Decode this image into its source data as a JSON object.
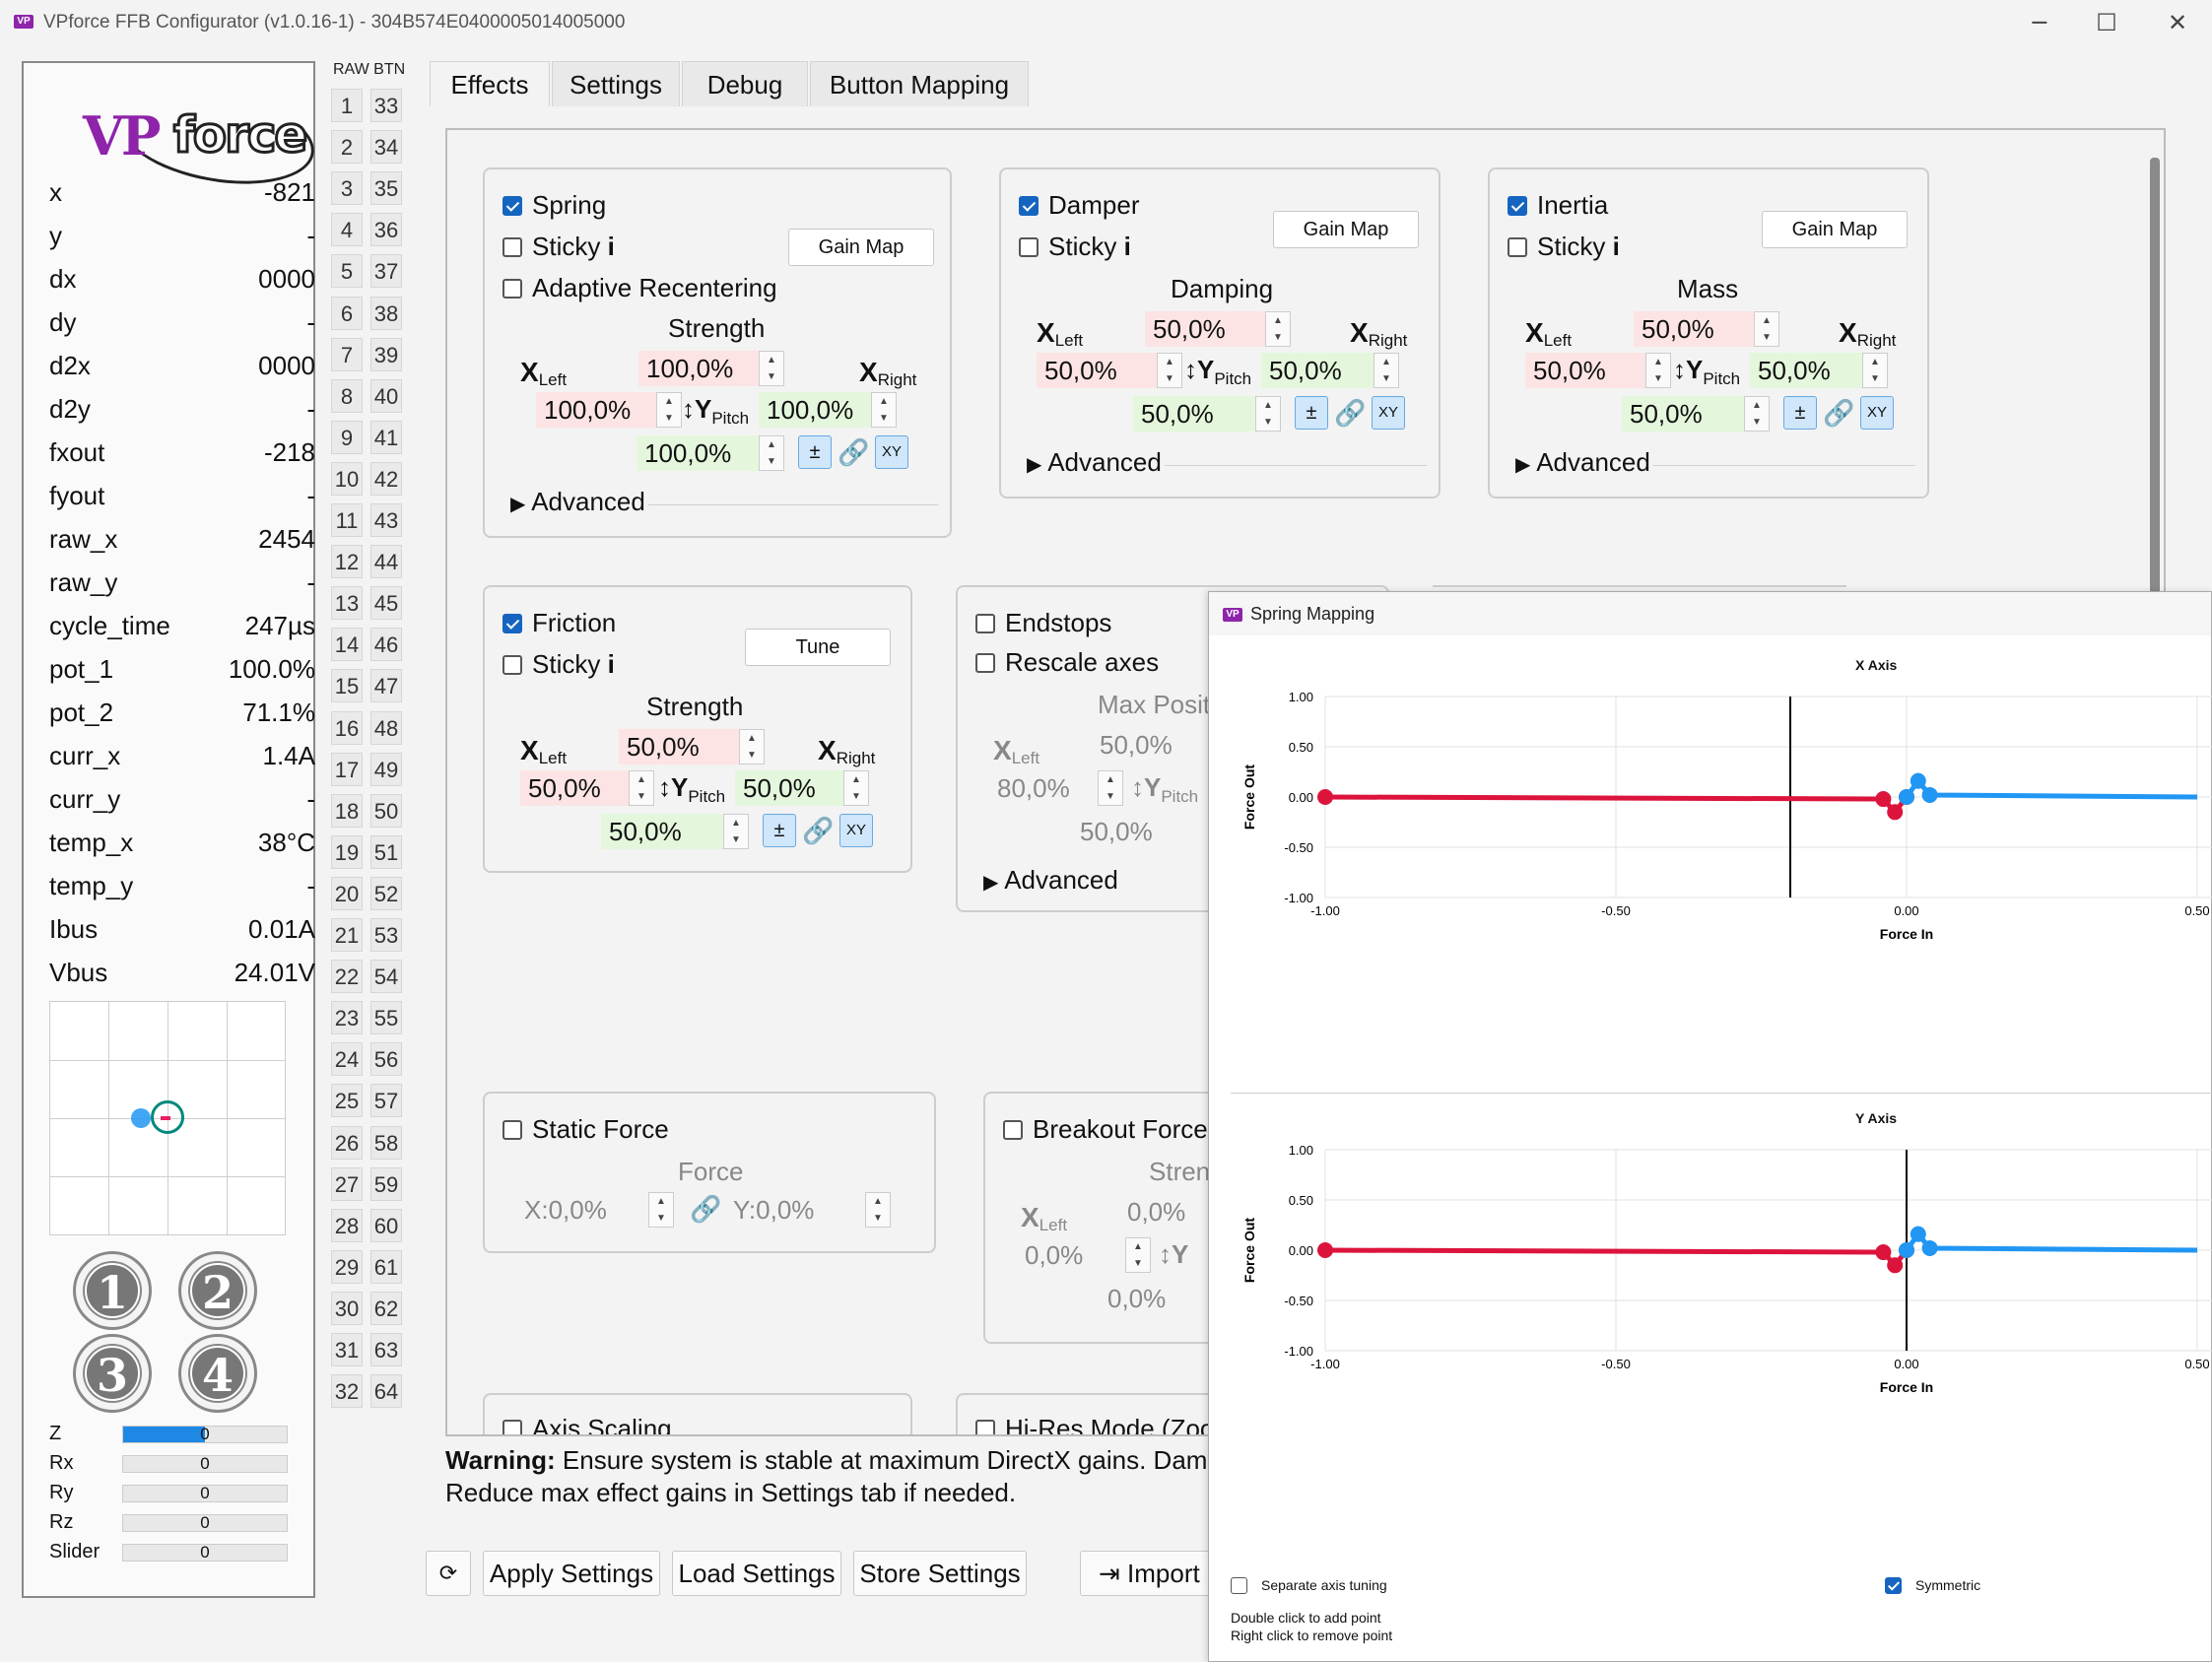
{
  "window": {
    "title": "VPforce FFB Configurator (v1.0.16-1) - 304B574E0400005014005000",
    "icon_text": "VP",
    "controls": {
      "minimize": "─",
      "maximize": "☐",
      "close": "✕"
    }
  },
  "logo": {
    "vp": "VP",
    "force": "force"
  },
  "telemetry": [
    {
      "key": "x",
      "value": "-821"
    },
    {
      "key": "y",
      "value": "-"
    },
    {
      "key": "dx",
      "value": "0000"
    },
    {
      "key": "dy",
      "value": "-"
    },
    {
      "key": "d2x",
      "value": "0000"
    },
    {
      "key": "d2y",
      "value": "-"
    },
    {
      "key": "fxout",
      "value": "-218"
    },
    {
      "key": "fyout",
      "value": "-"
    },
    {
      "key": "raw_x",
      "value": "2454"
    },
    {
      "key": "raw_y",
      "value": "-"
    },
    {
      "key": "cycle_time",
      "value": "247µs"
    },
    {
      "key": "pot_1",
      "value": "100.0%"
    },
    {
      "key": "pot_2",
      "value": "71.1%"
    },
    {
      "key": "curr_x",
      "value": "1.4A"
    },
    {
      "key": "curr_y",
      "value": "-"
    },
    {
      "key": "temp_x",
      "value": "38°C"
    },
    {
      "key": "temp_y",
      "value": "-"
    },
    {
      "key": "Ibus",
      "value": "0.01A"
    },
    {
      "key": "Vbus",
      "value": "24.01V"
    }
  ],
  "buttons_icons": [
    "1",
    "2",
    "3",
    "4"
  ],
  "axes": [
    {
      "key": "Z",
      "value": "0",
      "fill": 0.5
    },
    {
      "key": "Rx",
      "value": "0",
      "fill": 0
    },
    {
      "key": "Ry",
      "value": "0",
      "fill": 0
    },
    {
      "key": "Rz",
      "value": "0",
      "fill": 0
    },
    {
      "key": "Slider",
      "value": "0",
      "fill": 0
    }
  ],
  "rawbtn": {
    "header": "RAW BTN",
    "raw": [
      "1",
      "2",
      "3",
      "4",
      "5",
      "6",
      "7",
      "8",
      "9",
      "10",
      "11",
      "12",
      "13",
      "14",
      "15",
      "16",
      "17",
      "18",
      "19",
      "20",
      "21",
      "22",
      "23",
      "24",
      "25",
      "26",
      "27",
      "28",
      "29",
      "30",
      "31",
      "32"
    ],
    "btn": [
      "33",
      "34",
      "35",
      "36",
      "37",
      "38",
      "39",
      "40",
      "41",
      "42",
      "43",
      "44",
      "45",
      "46",
      "47",
      "48",
      "49",
      "50",
      "51",
      "52",
      "53",
      "54",
      "55",
      "56",
      "57",
      "58",
      "59",
      "60",
      "61",
      "62",
      "63",
      "64"
    ]
  },
  "tabs": [
    "Effects",
    "Settings",
    "Debug",
    "Button Mapping"
  ],
  "common": {
    "sticky": "Sticky",
    "info": "i",
    "gain_map": "Gain Map",
    "advanced": "Advanced",
    "x": "X",
    "left": "Left",
    "right": "Right",
    "y": "Y",
    "pitch": "Pitch",
    "pm": "±",
    "xy": "XY",
    "arrow_updown": "↕",
    "link": "🔗",
    "tri": "▶"
  },
  "spring": {
    "enabled_label": "Spring",
    "adaptive": "Adaptive Recentering",
    "section": "Strength",
    "top": "100,0%",
    "left": "100,0%",
    "right": "100,0%",
    "bottom": "100,0%"
  },
  "damper": {
    "enabled_label": "Damper",
    "section": "Damping",
    "top": "50,0%",
    "left": "50,0%",
    "right": "50,0%",
    "bottom": "50,0%"
  },
  "inertia": {
    "enabled_label": "Inertia",
    "section": "Mass",
    "top": "50,0%",
    "left": "50,0%",
    "right": "50,0%",
    "bottom": "50,0%"
  },
  "friction": {
    "enabled_label": "Friction",
    "tune": "Tune",
    "section": "Strength",
    "top": "50,0%",
    "left": "50,0%",
    "right": "50,0%",
    "bottom": "50,0%"
  },
  "endstops": {
    "enabled_label": "Endstops",
    "rescale": "Rescale axes",
    "section": "Max Positi",
    "top": "50,0%",
    "left": "80,0%",
    "bottom": "50,0%"
  },
  "static_force": {
    "enabled_label": "Static Force",
    "section": "Force",
    "x": "X:0,0%",
    "y": "Y:0,0%"
  },
  "breakout": {
    "enabled_label": "Breakout Force",
    "section": "Stren",
    "top": "0,0%",
    "left": "0,0%",
    "bottom": "0,0%"
  },
  "axis_scaling": {
    "enabled_label": "Axis Scaling"
  },
  "hires": {
    "enabled_label": "Hi-Res Mode (Zoo"
  },
  "warning": {
    "bold": "Warning:",
    "line1": "Ensure system is stable at maximum DirectX gains. Dam",
    "line2": "Reduce max effect gains in Settings tab if needed."
  },
  "bottom_buttons": {
    "refresh": "⟳",
    "apply": "Apply Settings",
    "load": "Load Settings",
    "store": "Store Settings",
    "import": "Import",
    "import_icon": "⇥"
  },
  "spring_mapping": {
    "title": "Spring Mapping",
    "x_plot_title": "X Axis",
    "y_plot_title": "Y Axis",
    "xlabel": "Force In",
    "ylabel": "Force Out",
    "separate": "Separate axis tuning",
    "symmetric": "Symmetric",
    "hint1": "Double click to add point",
    "hint2": "Right click to remove point"
  },
  "chart_data": [
    {
      "type": "line",
      "title": "X Axis",
      "xlabel": "Force In",
      "ylabel": "Force Out",
      "xlim": [
        -1.0,
        0.5
      ],
      "ylim": [
        -1.0,
        1.0
      ],
      "xticks": [
        "-1.00",
        "-0.50",
        "0.00",
        "0.50"
      ],
      "yticks": [
        "1.00",
        "0.50",
        "0.00",
        "-0.50",
        "-1.00"
      ],
      "grid": true,
      "cursor_x": -0.2,
      "series": [
        {
          "color": "#dc143c",
          "x": [
            -1.0,
            -0.04,
            -0.02,
            0.0
          ],
          "y": [
            0.0,
            -0.02,
            -0.15,
            0.0
          ]
        },
        {
          "color": "#2196f3",
          "x": [
            0.0,
            0.02,
            0.04,
            0.5
          ],
          "y": [
            0.0,
            0.16,
            0.02,
            0.0
          ]
        }
      ]
    },
    {
      "type": "line",
      "title": "Y Axis",
      "xlabel": "Force In",
      "ylabel": "Force Out",
      "xlim": [
        -1.0,
        0.5
      ],
      "ylim": [
        -1.0,
        1.0
      ],
      "xticks": [
        "-1.00",
        "-0.50",
        "0.00",
        "0.50"
      ],
      "yticks": [
        "1.00",
        "0.50",
        "0.00",
        "-0.50",
        "-1.00"
      ],
      "grid": true,
      "cursor_x": 0.0,
      "series": [
        {
          "color": "#dc143c",
          "x": [
            -1.0,
            -0.04,
            -0.02,
            0.0
          ],
          "y": [
            0.0,
            -0.02,
            -0.15,
            0.0
          ]
        },
        {
          "color": "#2196f3",
          "x": [
            0.0,
            0.02,
            0.04,
            0.5
          ],
          "y": [
            0.0,
            0.16,
            0.02,
            0.0
          ]
        }
      ]
    }
  ]
}
